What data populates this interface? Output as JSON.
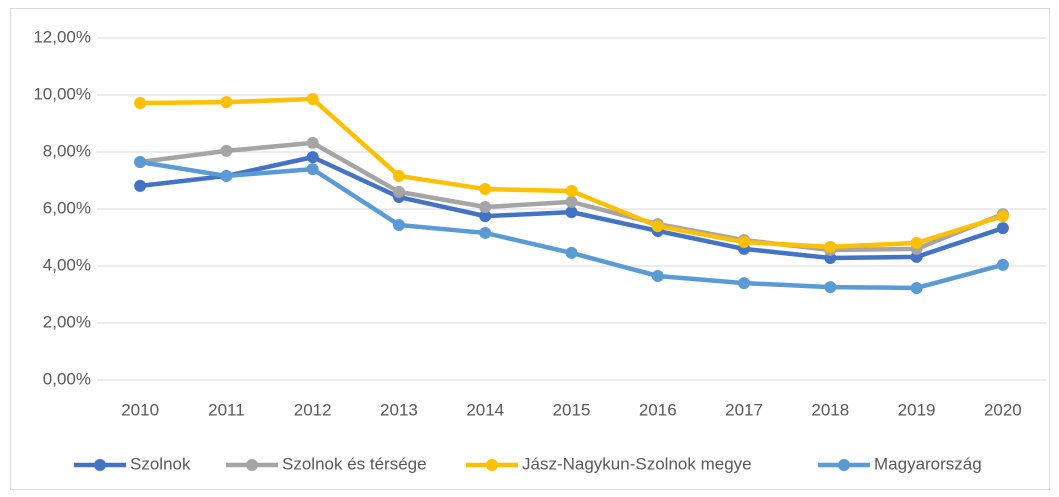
{
  "chart_data": {
    "type": "line",
    "categories": [
      "2010",
      "2011",
      "2012",
      "2013",
      "2014",
      "2015",
      "2016",
      "2017",
      "2018",
      "2019",
      "2020"
    ],
    "series": [
      {
        "name": "Szolnok",
        "color": "#4472c4",
        "values": [
          6.81,
          7.16,
          7.82,
          6.42,
          5.75,
          5.89,
          5.23,
          4.6,
          4.28,
          4.32,
          5.33
        ]
      },
      {
        "name": "Szolnok és térsége",
        "color": "#a5a5a5",
        "values": [
          7.65,
          8.04,
          8.32,
          6.6,
          6.07,
          6.25,
          5.47,
          4.91,
          4.56,
          4.6,
          5.82
        ]
      },
      {
        "name": "Jász-Nagykun-Szolnok megye",
        "color": "#ffc000",
        "values": [
          9.72,
          9.75,
          9.86,
          7.16,
          6.7,
          6.63,
          5.4,
          4.84,
          4.67,
          4.81,
          5.75
        ]
      },
      {
        "name": "Magyarország",
        "color": "#5b9bd5",
        "values": [
          7.65,
          7.16,
          7.4,
          5.44,
          5.16,
          4.46,
          3.65,
          3.4,
          3.26,
          3.23,
          4.04
        ]
      }
    ],
    "ylim": [
      0,
      12
    ],
    "yticks": [
      {
        "value": 0,
        "label": "0,00%"
      },
      {
        "value": 2,
        "label": "2,00%"
      },
      {
        "value": 4,
        "label": "4,00%"
      },
      {
        "value": 6,
        "label": "6,00%"
      },
      {
        "value": 8,
        "label": "8,00%"
      },
      {
        "value": 10,
        "label": "10,00%"
      },
      {
        "value": 12,
        "label": "12,00%"
      }
    ],
    "grid": true,
    "legend": "bottom"
  }
}
